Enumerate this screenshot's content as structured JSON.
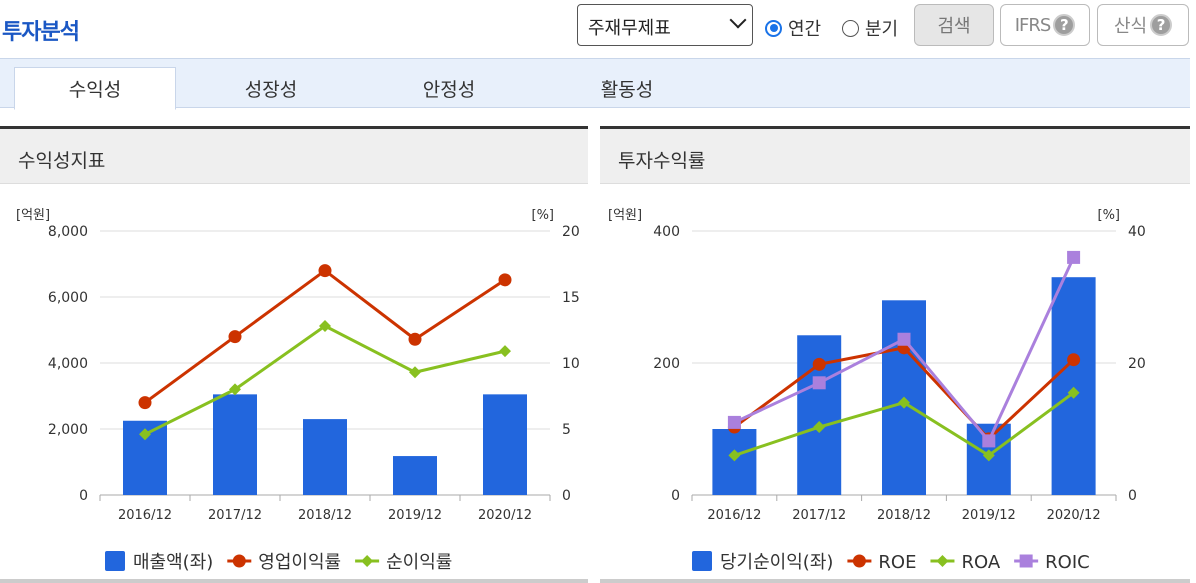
{
  "header": {
    "title": "투자분석"
  },
  "toolbar": {
    "select_value": "주재무제표",
    "radio_annual": "연간",
    "radio_quarter": "분기",
    "search": "검색",
    "ifrs": "IFRS",
    "formula": "산식",
    "help": "?"
  },
  "tabs": [
    {
      "label": "수익성",
      "active": true
    },
    {
      "label": "성장성",
      "active": false
    },
    {
      "label": "안정성",
      "active": false
    },
    {
      "label": "활동성",
      "active": false
    }
  ],
  "colors": {
    "bar": "#2266dd",
    "red": "#cc3300",
    "green": "#88c020",
    "purple": "#aa80dd"
  },
  "chart_data": [
    {
      "title": "수익성지표",
      "type": "bar+line",
      "left_unit": "[억원]",
      "right_unit": "[%]",
      "categories": [
        "2016/12",
        "2017/12",
        "2018/12",
        "2019/12",
        "2020/12"
      ],
      "left_ticks": [
        "0",
        "2,000",
        "4,000",
        "6,000",
        "8,000"
      ],
      "right_ticks": [
        "0",
        "5",
        "10",
        "15",
        "20"
      ],
      "ylim_left": [
        0,
        8000
      ],
      "ylim_right": [
        0,
        20
      ],
      "grid": "horizontal",
      "legend_position": "bottom",
      "series": [
        {
          "name": "매출액(좌)",
          "kind": "bar",
          "axis": "left",
          "color": "#2266dd",
          "values": [
            2250,
            3050,
            2300,
            1180,
            3050
          ]
        },
        {
          "name": "영업이익률",
          "kind": "line",
          "marker": "circle",
          "axis": "right",
          "color": "#cc3300",
          "values": [
            7.0,
            12.0,
            17.0,
            11.8,
            16.3
          ]
        },
        {
          "name": "순이익률",
          "kind": "line",
          "marker": "diamond",
          "axis": "right",
          "color": "#88c020",
          "values": [
            4.6,
            8.0,
            12.8,
            9.3,
            10.9
          ]
        }
      ]
    },
    {
      "title": "투자수익률",
      "type": "bar+line",
      "left_unit": "[억원]",
      "right_unit": "[%]",
      "categories": [
        "2016/12",
        "2017/12",
        "2018/12",
        "2019/12",
        "2020/12"
      ],
      "left_ticks": [
        "0",
        "200",
        "400"
      ],
      "right_ticks": [
        "0",
        "20",
        "40"
      ],
      "ylim_left": [
        0,
        400
      ],
      "ylim_right": [
        0,
        40
      ],
      "grid": "horizontal",
      "legend_position": "bottom",
      "series": [
        {
          "name": "당기순이익(좌)",
          "kind": "bar",
          "axis": "left",
          "color": "#2266dd",
          "values": [
            100,
            242,
            295,
            108,
            330
          ]
        },
        {
          "name": "ROE",
          "kind": "line",
          "marker": "circle",
          "axis": "right",
          "color": "#cc3300",
          "values": [
            10.3,
            19.8,
            22.3,
            8.5,
            20.5
          ]
        },
        {
          "name": "ROA",
          "kind": "line",
          "marker": "diamond",
          "axis": "right",
          "color": "#88c020",
          "values": [
            6.0,
            10.3,
            14.0,
            6.0,
            15.5
          ]
        },
        {
          "name": "ROIC",
          "kind": "line",
          "marker": "square",
          "axis": "right",
          "color": "#aa80dd",
          "values": [
            11.0,
            17.0,
            23.6,
            8.2,
            36.0
          ]
        }
      ]
    }
  ]
}
